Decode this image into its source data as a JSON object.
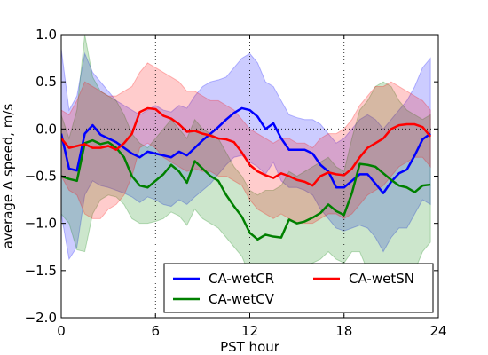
{
  "chart_data": {
    "type": "line",
    "xlabel": "PST hour",
    "ylabel": "average Δ speed, m/s",
    "xlim": [
      0,
      24
    ],
    "ylim": [
      -2.0,
      1.0
    ],
    "xticks": [
      0,
      6,
      12,
      18,
      24
    ],
    "xtick_labels": [
      "0",
      "6",
      "12",
      "18",
      "24"
    ],
    "yticks": [
      -2.0,
      -1.5,
      -1.0,
      -0.5,
      0.0,
      0.5,
      1.0
    ],
    "ytick_labels": [
      "−2.0",
      "−1.5",
      "−1.0",
      "−0.5",
      "0.0",
      "0.5",
      "1.0"
    ],
    "vlines": [
      6,
      12,
      18
    ],
    "hline": 0,
    "legend_position": "lower-right",
    "legend_columns": 2,
    "series": [
      {
        "name": "CA-wetCR",
        "color": "#0000ff",
        "x": [
          0,
          0.5,
          1,
          1.5,
          2,
          2.5,
          3,
          3.5,
          4,
          4.5,
          5,
          5.5,
          6,
          6.5,
          7,
          7.5,
          8,
          8.5,
          9,
          9.5,
          10,
          10.5,
          11,
          11.5,
          12,
          12.5,
          13,
          13.5,
          14,
          14.5,
          15,
          15.5,
          16,
          16.5,
          17,
          17.5,
          18,
          18.5,
          19,
          19.5,
          20,
          20.5,
          21,
          21.5,
          22,
          22.5,
          23,
          23.5
        ],
        "values": [
          -0.05,
          -0.42,
          -0.44,
          -0.05,
          0.04,
          -0.06,
          -0.1,
          -0.14,
          -0.2,
          -0.26,
          -0.3,
          -0.24,
          -0.26,
          -0.28,
          -0.3,
          -0.24,
          -0.28,
          -0.2,
          -0.12,
          -0.05,
          0.02,
          0.1,
          0.17,
          0.22,
          0.2,
          0.13,
          0.0,
          0.06,
          -0.1,
          -0.22,
          -0.22,
          -0.22,
          -0.26,
          -0.38,
          -0.45,
          -0.62,
          -0.62,
          -0.55,
          -0.48,
          -0.48,
          -0.58,
          -0.68,
          -0.56,
          -0.47,
          -0.43,
          -0.28,
          -0.11,
          -0.05
        ],
        "upper": [
          0.85,
          0.2,
          0.35,
          0.8,
          0.6,
          0.5,
          0.4,
          0.3,
          0.25,
          0.2,
          0.15,
          0.2,
          0.25,
          0.2,
          0.18,
          0.25,
          0.22,
          0.35,
          0.45,
          0.5,
          0.52,
          0.55,
          0.65,
          0.75,
          0.8,
          0.7,
          0.5,
          0.45,
          0.3,
          0.15,
          0.12,
          0.1,
          0.1,
          0.05,
          -0.05,
          -0.15,
          -0.1,
          0.0,
          0.1,
          0.15,
          0.1,
          0.0,
          0.1,
          0.2,
          0.3,
          0.45,
          0.65,
          0.75
        ],
        "lower": [
          -0.9,
          -1.38,
          -1.25,
          -0.7,
          -0.55,
          -0.6,
          -0.62,
          -0.65,
          -0.68,
          -0.72,
          -0.78,
          -0.72,
          -0.75,
          -0.8,
          -0.82,
          -0.75,
          -0.8,
          -0.72,
          -0.65,
          -0.58,
          -0.48,
          -0.38,
          -0.3,
          -0.28,
          -0.35,
          -0.4,
          -0.48,
          -0.35,
          -0.55,
          -0.62,
          -0.62,
          -0.65,
          -0.7,
          -0.85,
          -0.95,
          -1.05,
          -1.08,
          -1.05,
          -1.02,
          -1.05,
          -1.15,
          -1.3,
          -1.15,
          -1.05,
          -1.05,
          -0.9,
          -0.75,
          -0.8
        ]
      },
      {
        "name": "CA-wetCV",
        "color": "#008000",
        "x": [
          0,
          0.5,
          1,
          1.5,
          2,
          2.5,
          3,
          3.5,
          4,
          4.5,
          5,
          5.5,
          6,
          6.5,
          7,
          7.5,
          8,
          8.5,
          9,
          9.5,
          10,
          10.5,
          11,
          11.5,
          12,
          12.5,
          13,
          13.5,
          14,
          14.5,
          15,
          15.5,
          16,
          16.5,
          17,
          17.5,
          18,
          18.5,
          19,
          19.5,
          20,
          20.5,
          21,
          21.5,
          22,
          22.5,
          23,
          23.5
        ],
        "values": [
          -0.5,
          -0.53,
          -0.55,
          -0.15,
          -0.12,
          -0.16,
          -0.14,
          -0.2,
          -0.3,
          -0.5,
          -0.6,
          -0.62,
          -0.55,
          -0.48,
          -0.38,
          -0.45,
          -0.57,
          -0.34,
          -0.42,
          -0.5,
          -0.55,
          -0.7,
          -0.82,
          -0.93,
          -1.1,
          -1.17,
          -1.12,
          -1.14,
          -1.15,
          -0.96,
          -1.0,
          -0.98,
          -0.94,
          -0.89,
          -0.8,
          -0.87,
          -0.91,
          -0.68,
          -0.37,
          -0.38,
          -0.4,
          -0.47,
          -0.54,
          -0.6,
          -0.62,
          -0.67,
          -0.6,
          -0.59
        ],
        "upper": [
          0.15,
          -0.1,
          0.2,
          1.0,
          0.55,
          0.4,
          0.35,
          0.3,
          0.15,
          -0.05,
          -0.15,
          -0.2,
          -0.1,
          0.0,
          0.1,
          0.0,
          -0.1,
          0.1,
          0.0,
          -0.05,
          -0.1,
          -0.25,
          -0.4,
          -0.5,
          -0.65,
          -0.7,
          -0.65,
          -0.65,
          -0.6,
          -0.45,
          -0.5,
          -0.45,
          -0.4,
          -0.35,
          -0.3,
          -0.4,
          -0.45,
          -0.1,
          0.2,
          0.3,
          0.45,
          0.5,
          0.45,
          0.3,
          0.2,
          0.15,
          0.1,
          0.15
        ],
        "lower": [
          -0.9,
          -1.0,
          -1.28,
          -1.3,
          -0.9,
          -0.75,
          -0.7,
          -0.72,
          -0.8,
          -0.95,
          -1.0,
          -1.0,
          -0.98,
          -0.95,
          -0.88,
          -0.92,
          -1.02,
          -0.85,
          -0.95,
          -1.0,
          -1.05,
          -1.15,
          -1.25,
          -1.35,
          -1.55,
          -1.65,
          -1.6,
          -1.6,
          -1.65,
          -1.45,
          -1.5,
          -1.45,
          -1.42,
          -1.38,
          -1.3,
          -1.38,
          -1.42,
          -1.3,
          -1.3,
          -1.5,
          -1.65,
          -1.75,
          -1.65,
          -1.6,
          -1.5,
          -1.5,
          -1.3,
          -1.2
        ]
      },
      {
        "name": "CA-wetSN",
        "color": "#ff0000",
        "x": [
          0,
          0.5,
          1,
          1.5,
          2,
          2.5,
          3,
          3.5,
          4,
          4.5,
          5,
          5.5,
          6,
          6.5,
          7,
          7.5,
          8,
          8.5,
          9,
          9.5,
          10,
          10.5,
          11,
          11.5,
          12,
          12.5,
          13,
          13.5,
          14,
          14.5,
          15,
          15.5,
          16,
          16.5,
          17,
          17.5,
          18,
          18.5,
          19,
          19.5,
          20,
          20.5,
          21,
          21.5,
          22,
          22.5,
          23,
          23.5
        ],
        "values": [
          -0.1,
          -0.2,
          -0.18,
          -0.16,
          -0.2,
          -0.2,
          -0.18,
          -0.22,
          -0.15,
          -0.05,
          0.18,
          0.22,
          0.21,
          0.14,
          0.11,
          0.05,
          -0.03,
          -0.02,
          -0.05,
          -0.07,
          -0.1,
          -0.11,
          -0.14,
          -0.25,
          -0.38,
          -0.45,
          -0.49,
          -0.52,
          -0.47,
          -0.5,
          -0.54,
          -0.56,
          -0.6,
          -0.5,
          -0.46,
          -0.48,
          -0.49,
          -0.42,
          -0.3,
          -0.2,
          -0.15,
          -0.1,
          0.0,
          0.04,
          0.05,
          0.05,
          0.02,
          -0.08
        ],
        "upper": [
          0.2,
          0.15,
          0.3,
          0.5,
          0.45,
          0.4,
          0.35,
          0.35,
          0.4,
          0.45,
          0.6,
          0.7,
          0.65,
          0.6,
          0.55,
          0.5,
          0.4,
          0.4,
          0.35,
          0.3,
          0.3,
          0.25,
          0.2,
          0.1,
          0.0,
          -0.05,
          -0.1,
          -0.15,
          -0.1,
          -0.1,
          -0.15,
          -0.15,
          -0.2,
          -0.1,
          -0.05,
          -0.05,
          0.0,
          0.1,
          0.25,
          0.35,
          0.45,
          0.45,
          0.5,
          0.45,
          0.4,
          0.35,
          0.3,
          0.2
        ],
        "lower": [
          -0.5,
          -0.65,
          -0.7,
          -0.9,
          -0.95,
          -0.95,
          -0.85,
          -0.8,
          -0.7,
          -0.5,
          -0.2,
          -0.15,
          -0.2,
          -0.3,
          -0.35,
          -0.4,
          -0.45,
          -0.42,
          -0.45,
          -0.45,
          -0.5,
          -0.5,
          -0.55,
          -0.6,
          -0.75,
          -0.85,
          -0.9,
          -0.95,
          -0.9,
          -0.95,
          -1.0,
          -1.0,
          -1.0,
          -0.95,
          -0.9,
          -0.9,
          -0.95,
          -0.9,
          -0.8,
          -0.7,
          -0.65,
          -0.6,
          -0.5,
          -0.4,
          -0.35,
          -0.3,
          -0.3,
          -0.4
        ]
      }
    ]
  }
}
